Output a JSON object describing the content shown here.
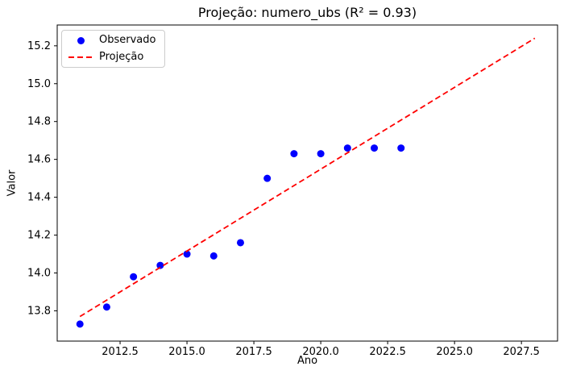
{
  "chart_data": {
    "type": "scatter",
    "title": "Projeção: numero_ubs (R² = 0.93)",
    "xlabel": "Ano",
    "ylabel": "Valor",
    "xlim": [
      2010.15,
      2028.85
    ],
    "ylim": [
      13.64,
      15.31
    ],
    "grid": false,
    "legend_position": "upper left",
    "xticks": [
      {
        "value": 2012.5,
        "label": "2012.5"
      },
      {
        "value": 2015.0,
        "label": "2015.0"
      },
      {
        "value": 2017.5,
        "label": "2017.5"
      },
      {
        "value": 2020.0,
        "label": "2020.0"
      },
      {
        "value": 2022.5,
        "label": "2022.5"
      },
      {
        "value": 2025.0,
        "label": "2025.0"
      },
      {
        "value": 2027.5,
        "label": "2027.5"
      }
    ],
    "yticks": [
      {
        "value": 13.8,
        "label": "13.8"
      },
      {
        "value": 14.0,
        "label": "14.0"
      },
      {
        "value": 14.2,
        "label": "14.2"
      },
      {
        "value": 14.4,
        "label": "14.4"
      },
      {
        "value": 14.6,
        "label": "14.6"
      },
      {
        "value": 14.8,
        "label": "14.8"
      },
      {
        "value": 15.0,
        "label": "15.0"
      },
      {
        "value": 15.2,
        "label": "15.2"
      }
    ],
    "series": [
      {
        "name": "Observado",
        "kind": "scatter",
        "color": "#0000ff",
        "marker": "circle",
        "x": [
          2011,
          2012,
          2013,
          2014,
          2015,
          2016,
          2017,
          2018,
          2019,
          2020,
          2021,
          2022,
          2023
        ],
        "y": [
          13.73,
          13.82,
          13.98,
          14.04,
          14.1,
          14.09,
          14.16,
          14.5,
          14.63,
          14.63,
          14.66,
          14.66,
          14.66
        ]
      },
      {
        "name": "Projeção",
        "kind": "dashed-line",
        "color": "#ff0000",
        "x": [
          2011,
          2028
        ],
        "y": [
          13.77,
          15.24
        ]
      }
    ]
  },
  "colors": {
    "background": "#ffffff",
    "spine": "#000000",
    "text": "#000000",
    "legend_border": "#cccccc",
    "observado": "#0000ff",
    "projecao": "#ff0000"
  }
}
